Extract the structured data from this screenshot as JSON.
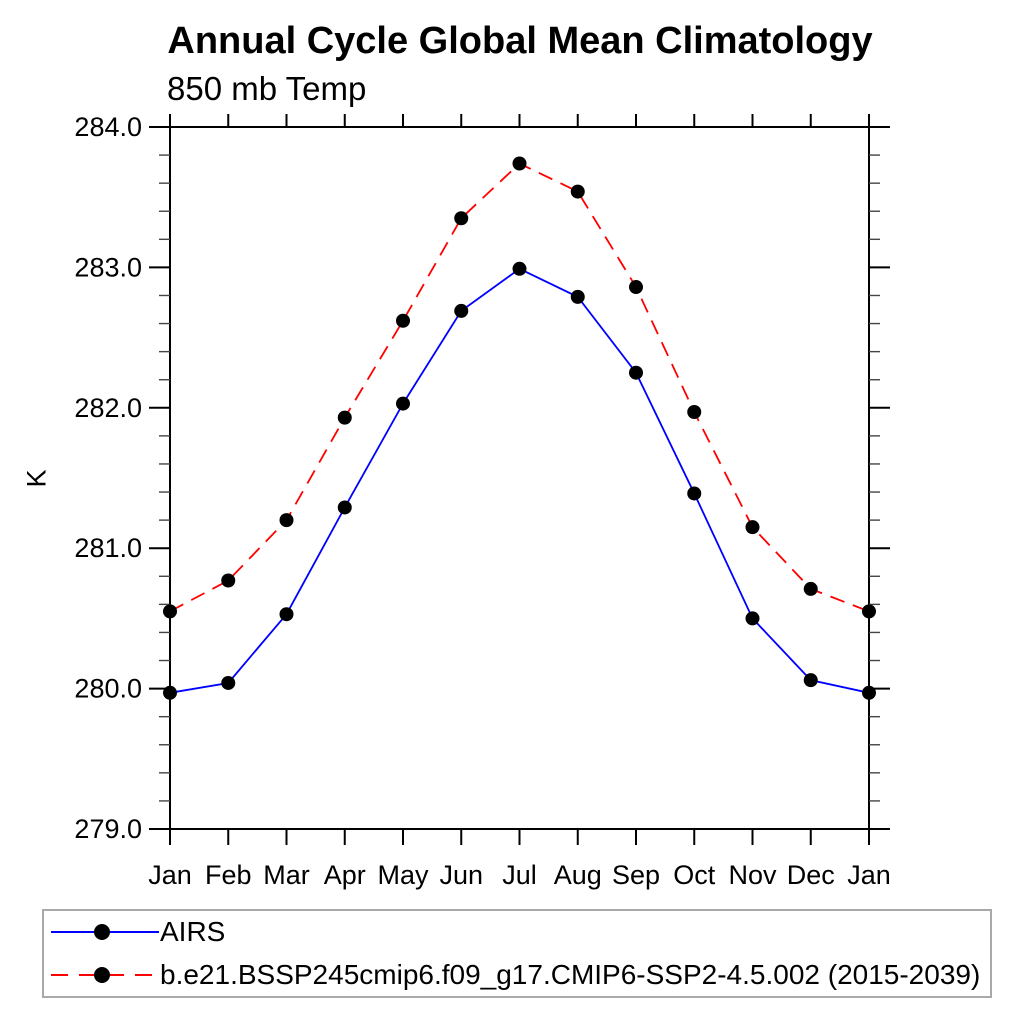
{
  "chart": {
    "title": "Annual Cycle Global Mean Climatology",
    "subtitle": "850 mb Temp",
    "ylabel": "K"
  },
  "chart_data": {
    "type": "line",
    "title": "Annual Cycle Global Mean Climatology",
    "subtitle": "850 mb Temp",
    "xlabel": "",
    "ylabel": "K",
    "categories": [
      "Jan",
      "Feb",
      "Mar",
      "Apr",
      "May",
      "Jun",
      "Jul",
      "Aug",
      "Sep",
      "Oct",
      "Nov",
      "Dec",
      "Jan"
    ],
    "series": [
      {
        "name": "AIRS",
        "color": "#0000ff",
        "line_style": "solid",
        "marker": "filled-circle",
        "marker_color": "#000000",
        "values": [
          279.97,
          280.04,
          280.53,
          281.29,
          282.03,
          282.69,
          282.99,
          282.79,
          282.25,
          281.39,
          280.5,
          280.06,
          279.97
        ]
      },
      {
        "name": "b.e21.BSSP245cmip6.f09_g17.CMIP6-SSP2-4.5.002 (2015-2039)",
        "color": "#ff0000",
        "line_style": "dashed",
        "marker": "filled-circle",
        "marker_color": "#000000",
        "values": [
          280.55,
          280.77,
          281.2,
          281.93,
          282.62,
          283.35,
          283.74,
          283.54,
          282.86,
          281.97,
          281.15,
          280.71,
          280.55
        ]
      }
    ],
    "ylim": [
      279.0,
      284.0
    ],
    "ytick_major_step": 1.0,
    "ytick_minor_step": 0.2,
    "ytick_label_format": "one-decimal",
    "grid": false,
    "legend_position": "bottom-box",
    "axis_color": "#000000",
    "legend_border_color": "#a9a9a9"
  }
}
